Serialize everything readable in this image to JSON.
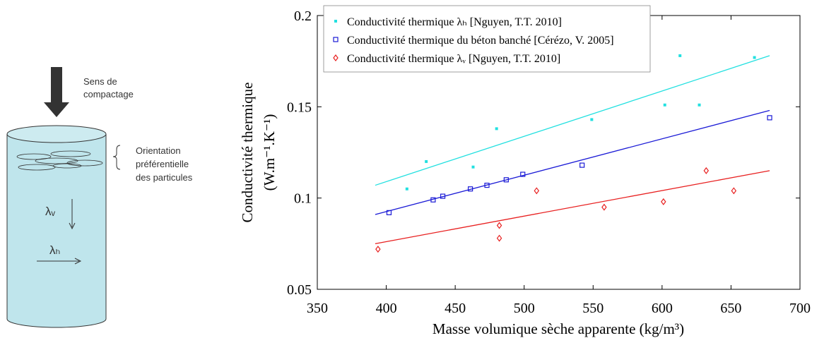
{
  "diagram": {
    "compaction_label": [
      "Sens de",
      "compactage"
    ],
    "orientation_label": [
      "Orientation",
      "préférentielle",
      "des particules"
    ],
    "lambda_v": "λᵥ",
    "lambda_h": "λₕ"
  },
  "chart_data": {
    "type": "scatter",
    "x_label": "Masse volumique sèche apparente (kg/m³)",
    "y_label": [
      "Conductivité thermique",
      "(W.m⁻¹.K⁻¹)"
    ],
    "xlim": [
      350,
      700
    ],
    "xticks": [
      350,
      400,
      450,
      500,
      550,
      600,
      650,
      700
    ],
    "ylim": [
      0.05,
      0.2
    ],
    "yticks": [
      0.05,
      0.1,
      0.15,
      0.2
    ],
    "legend": "top-left",
    "series": [
      {
        "name": "Conductivité thermique λₕ [Nguyen, T.T. 2010]",
        "color": "#22e0e0",
        "marker": "dot",
        "x": [
          415,
          429,
          463,
          480,
          549,
          602,
          613,
          627,
          667
        ],
        "values": [
          0.105,
          0.12,
          0.117,
          0.138,
          0.143,
          0.151,
          0.178,
          0.151,
          0.177
        ],
        "trend_x": [
          392,
          678
        ],
        "trend_y": [
          0.107,
          0.178
        ]
      },
      {
        "name": "Conductivité thermique du béton banché [Cérézo, V. 2005]",
        "color": "#1a1ad6",
        "marker": "square",
        "x": [
          402,
          434,
          441,
          461,
          473,
          487,
          499,
          542,
          678
        ],
        "values": [
          0.092,
          0.099,
          0.101,
          0.105,
          0.107,
          0.11,
          0.113,
          0.118,
          0.144
        ],
        "trend_x": [
          392,
          678
        ],
        "trend_y": [
          0.091,
          0.148
        ]
      },
      {
        "name": "Conductivité thermique λᵥ [Nguyen, T.T. 2010]",
        "color": "#e82020",
        "marker": "diamond",
        "x": [
          394,
          482,
          482,
          509,
          558,
          601,
          632,
          652
        ],
        "values": [
          0.072,
          0.078,
          0.085,
          0.104,
          0.095,
          0.098,
          0.115,
          0.104
        ],
        "trend_x": [
          392,
          678
        ],
        "trend_y": [
          0.075,
          0.115
        ]
      }
    ]
  }
}
